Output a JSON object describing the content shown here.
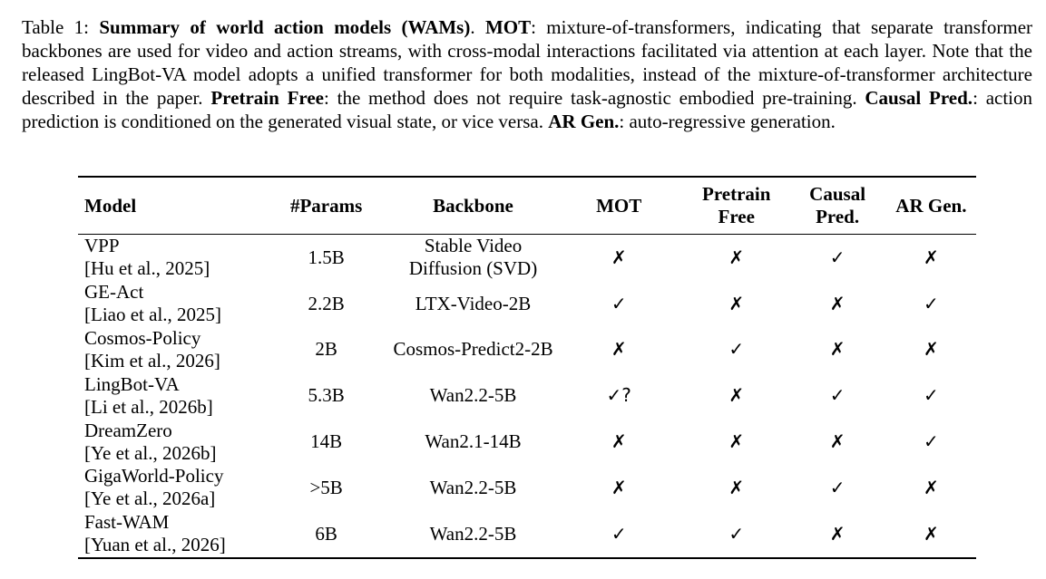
{
  "caption": {
    "label": "Table 1: ",
    "title": "Summary of world action models (WAMs)",
    "after_title": ". ",
    "t1": "MOT",
    "d1": ": mixture-of-transformers, indicating that separate transformer backbones are used for video and action streams, with cross-modal interactions facilitated via attention at each layer. Note that the released LingBot-VA model adopts a unified transformer for both modalities, instead of the mixture-of-transformer architecture described in the paper. ",
    "t2": "Pretrain Free",
    "d2": ": the method does not require task-agnostic embodied pre-training. ",
    "t3": "Causal Pred.",
    "d3": ": action prediction is conditioned on the generated visual state, or vice versa. ",
    "t4": "AR Gen.",
    "d4": ": auto-regressive generation."
  },
  "table": {
    "headers": {
      "model": "Model",
      "params": "#Params",
      "backbone": "Backbone",
      "mot": "MOT",
      "pretrain_1": "Pretrain",
      "pretrain_2": "Free",
      "causal_1": "Causal",
      "causal_2": "Pred.",
      "ar": "AR Gen."
    },
    "rows": [
      {
        "name": "VPP",
        "cite": "[Hu et al., 2025]",
        "params": "1.5B",
        "backbone_1": "Stable Video",
        "backbone_2": "Diffusion (SVD)",
        "mot": "✗",
        "pretrain": "✗",
        "causal": "✓",
        "ar": "✗"
      },
      {
        "name": "GE-Act",
        "cite": "[Liao et al., 2025]",
        "params": "2.2B",
        "backbone_1": "LTX-Video-2B",
        "backbone_2": "",
        "mot": "✓",
        "pretrain": "✗",
        "causal": "✗",
        "ar": "✓"
      },
      {
        "name": "Cosmos-Policy",
        "cite": "[Kim et al., 2026]",
        "params": "2B",
        "backbone_1": "Cosmos-Predict2-2B",
        "backbone_2": "",
        "mot": "✗",
        "pretrain": "✓",
        "causal": "✗",
        "ar": "✗"
      },
      {
        "name": "LingBot-VA",
        "cite": "[Li et al., 2026b]",
        "params": "5.3B",
        "backbone_1": "Wan2.2-5B",
        "backbone_2": "",
        "mot": "✓?",
        "pretrain": "✗",
        "causal": "✓",
        "ar": "✓"
      },
      {
        "name": "DreamZero",
        "cite": "[Ye et al., 2026b]",
        "params": "14B",
        "backbone_1": "Wan2.1-14B",
        "backbone_2": "",
        "mot": "✗",
        "pretrain": "✗",
        "causal": "✗",
        "ar": "✓"
      },
      {
        "name": "GigaWorld-Policy",
        "cite": "[Ye et al., 2026a]",
        "params": ">5B",
        "backbone_1": "Wan2.2-5B",
        "backbone_2": "",
        "mot": "✗",
        "pretrain": "✗",
        "causal": "✓",
        "ar": "✗"
      },
      {
        "name": "Fast-WAM",
        "cite": "[Yuan et al., 2026]",
        "params": "6B",
        "backbone_1": "Wan2.2-5B",
        "backbone_2": "",
        "mot": "✓",
        "pretrain": "✓",
        "causal": "✗",
        "ar": "✗"
      }
    ]
  }
}
